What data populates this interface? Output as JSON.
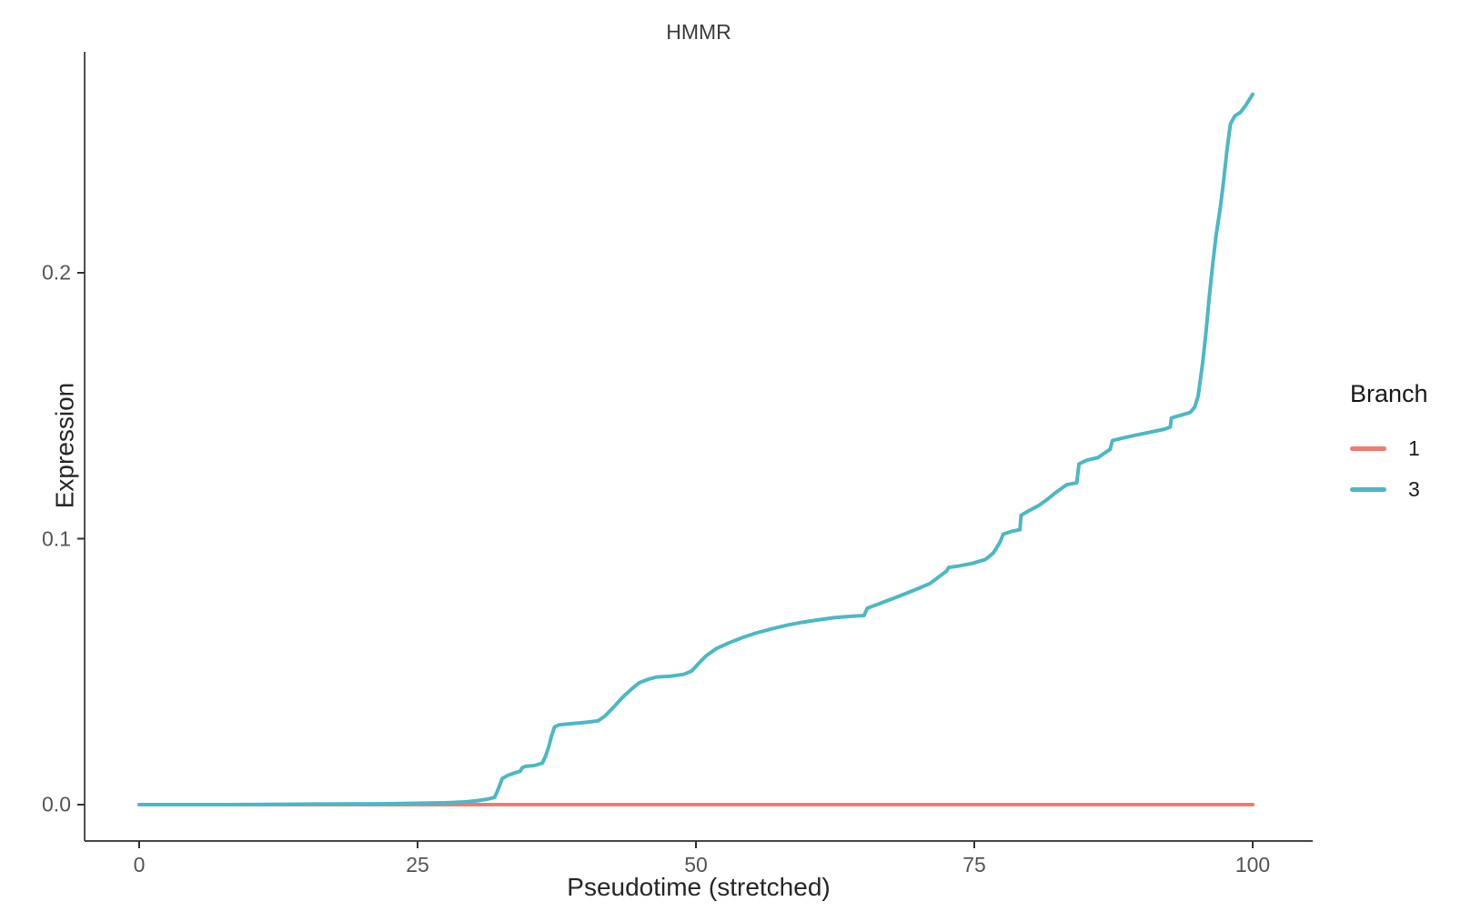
{
  "chart_data": {
    "type": "line",
    "title": "HMMR",
    "xlabel": "Pseudotime (stretched)",
    "ylabel": "Expression",
    "xlim": [
      0,
      100
    ],
    "ylim": [
      0,
      0.27
    ],
    "grid": false,
    "x_ticks": [
      0,
      25,
      50,
      75,
      100
    ],
    "x_tick_labels": [
      "0",
      "25",
      "50",
      "75",
      "100"
    ],
    "y_ticks": [
      0.0,
      0.1,
      0.2
    ],
    "y_tick_labels": [
      "0.0",
      "0.1",
      "0.2"
    ],
    "legend": {
      "title": "Branch",
      "position": "right",
      "entries": [
        {
          "label": "1",
          "color": "#EF7B70"
        },
        {
          "label": "3",
          "color": "#4CB8C4"
        }
      ]
    },
    "colors": {
      "axis": "#4d4d4d",
      "tick": "#333333",
      "branch1": "#EF7B70",
      "branch3": "#4CB8C4"
    },
    "series": [
      {
        "name": "1",
        "color": "#EF7B70",
        "points": [
          [
            0,
            0
          ],
          [
            100,
            0
          ]
        ]
      },
      {
        "name": "3",
        "color": "#4CB8C4",
        "points": [
          [
            0,
            0
          ],
          [
            8,
            0
          ],
          [
            16,
            0.0002
          ],
          [
            21.8,
            0.0003
          ],
          [
            25,
            0.0005
          ],
          [
            27.5,
            0.0007
          ],
          [
            29.2,
            0.001
          ],
          [
            30.4,
            0.0015
          ],
          [
            31.2,
            0.002
          ],
          [
            31.9,
            0.0027
          ],
          [
            32.1,
            0.0044
          ],
          [
            32.4,
            0.0075
          ],
          [
            32.6,
            0.0098
          ],
          [
            33.1,
            0.011
          ],
          [
            33.7,
            0.0119
          ],
          [
            34.2,
            0.0125
          ],
          [
            34.4,
            0.0139
          ],
          [
            34.7,
            0.0144
          ],
          [
            35.5,
            0.0147
          ],
          [
            36.2,
            0.0156
          ],
          [
            36.5,
            0.0183
          ],
          [
            36.8,
            0.022
          ],
          [
            37,
            0.0254
          ],
          [
            37.3,
            0.0292
          ],
          [
            37.7,
            0.03
          ],
          [
            39,
            0.0305
          ],
          [
            40.2,
            0.031
          ],
          [
            41.2,
            0.0315
          ],
          [
            41.8,
            0.0332
          ],
          [
            42.6,
            0.0366
          ],
          [
            43.4,
            0.0403
          ],
          [
            44.2,
            0.0434
          ],
          [
            44.9,
            0.0458
          ],
          [
            45.7,
            0.0471
          ],
          [
            46.5,
            0.048
          ],
          [
            47.7,
            0.0483
          ],
          [
            48.9,
            0.049
          ],
          [
            49.6,
            0.0502
          ],
          [
            50.2,
            0.0529
          ],
          [
            50.9,
            0.0559
          ],
          [
            51.8,
            0.0586
          ],
          [
            52.9,
            0.0607
          ],
          [
            54.1,
            0.0627
          ],
          [
            55.3,
            0.0644
          ],
          [
            56.8,
            0.0661
          ],
          [
            58.2,
            0.0675
          ],
          [
            59.6,
            0.0686
          ],
          [
            61,
            0.0695
          ],
          [
            62.4,
            0.0703
          ],
          [
            63.9,
            0.0708
          ],
          [
            65.1,
            0.0711
          ],
          [
            65.4,
            0.0739
          ],
          [
            66.5,
            0.0756
          ],
          [
            68,
            0.078
          ],
          [
            69.4,
            0.0803
          ],
          [
            71,
            0.0831
          ],
          [
            72.5,
            0.0878
          ],
          [
            72.7,
            0.0892
          ],
          [
            73.7,
            0.0898
          ],
          [
            74.9,
            0.0908
          ],
          [
            76,
            0.0922
          ],
          [
            76.7,
            0.0946
          ],
          [
            77.3,
            0.0986
          ],
          [
            77.6,
            0.1017
          ],
          [
            78.3,
            0.1027
          ],
          [
            79.1,
            0.1034
          ],
          [
            79.2,
            0.1088
          ],
          [
            79.9,
            0.1105
          ],
          [
            80.8,
            0.1125
          ],
          [
            81.5,
            0.1146
          ],
          [
            82.3,
            0.1173
          ],
          [
            83.3,
            0.1203
          ],
          [
            84.2,
            0.121
          ],
          [
            84.4,
            0.1281
          ],
          [
            85.1,
            0.1295
          ],
          [
            86.1,
            0.1305
          ],
          [
            87.2,
            0.1336
          ],
          [
            87.4,
            0.1369
          ],
          [
            88.8,
            0.1383
          ],
          [
            90.4,
            0.1397
          ],
          [
            92.1,
            0.1412
          ],
          [
            92.6,
            0.142
          ],
          [
            92.7,
            0.1454
          ],
          [
            93.7,
            0.1466
          ],
          [
            94.4,
            0.1475
          ],
          [
            94.8,
            0.1495
          ],
          [
            95.1,
            0.1536
          ],
          [
            95.3,
            0.1597
          ],
          [
            95.5,
            0.1658
          ],
          [
            95.8,
            0.1773
          ],
          [
            96.1,
            0.1908
          ],
          [
            96.4,
            0.2027
          ],
          [
            96.7,
            0.2136
          ],
          [
            97.1,
            0.2247
          ],
          [
            97.4,
            0.2349
          ],
          [
            97.7,
            0.2464
          ],
          [
            98,
            0.2559
          ],
          [
            98.4,
            0.259
          ],
          [
            98.9,
            0.2603
          ],
          [
            99.4,
            0.2631
          ],
          [
            100,
            0.2671
          ]
        ]
      }
    ]
  }
}
